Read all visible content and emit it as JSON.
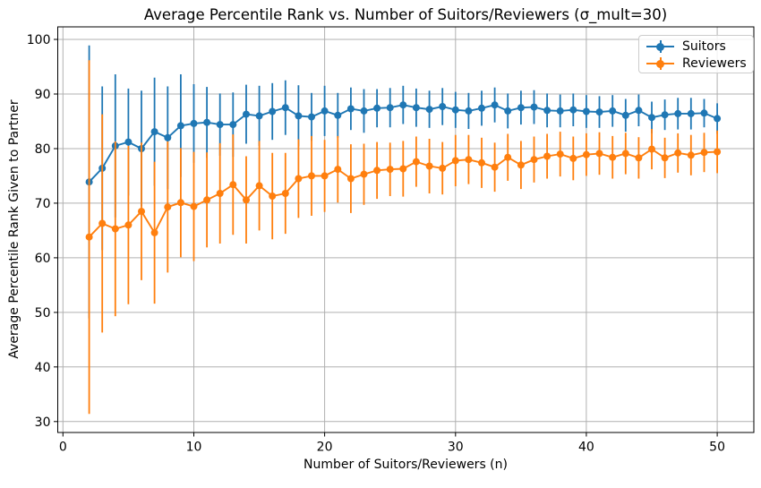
{
  "chart_data": {
    "type": "line",
    "title": "Average Percentile Rank vs. Number of Suitors/Reviewers (σ_mult=30)",
    "xlabel": "Number of Suitors/Reviewers (n)",
    "ylabel": "Average Percentile Rank Given to Partner",
    "grid": true,
    "error_bars": true,
    "marker": "circle",
    "legend_position": "upper right",
    "xlim": [
      -0.4,
      52.8
    ],
    "ylim": [
      28.0,
      102.3
    ],
    "xticks": [
      0,
      10,
      20,
      30,
      40,
      50
    ],
    "yticks": [
      30,
      40,
      50,
      60,
      70,
      80,
      90,
      100
    ],
    "x": [
      2,
      3,
      4,
      5,
      6,
      7,
      8,
      9,
      10,
      11,
      12,
      13,
      14,
      15,
      16,
      17,
      18,
      19,
      20,
      21,
      22,
      23,
      24,
      25,
      26,
      27,
      28,
      29,
      30,
      31,
      32,
      33,
      34,
      35,
      36,
      37,
      38,
      39,
      40,
      41,
      42,
      43,
      44,
      45,
      46,
      47,
      48,
      49,
      50
    ],
    "series": [
      {
        "name": "Suitors",
        "color": "#1f77b4",
        "values": [
          73.9,
          76.4,
          80.5,
          81.2,
          80.0,
          83.1,
          82.0,
          84.2,
          84.6,
          84.8,
          84.4,
          84.4,
          86.3,
          86.0,
          86.8,
          87.5,
          86.0,
          85.8,
          86.9,
          86.1,
          87.3,
          86.9,
          87.4,
          87.5,
          88.0,
          87.5,
          87.2,
          87.7,
          87.1,
          86.9,
          87.4,
          88.0,
          86.9,
          87.5,
          87.6,
          87.0,
          86.9,
          87.1,
          86.8,
          86.7,
          86.9,
          86.1,
          87.0,
          85.7,
          86.2,
          86.4,
          86.4,
          86.5,
          85.5
        ],
        "errors": [
          25.0,
          15.0,
          13.1,
          9.8,
          10.6,
          9.9,
          9.4,
          9.4,
          7.2,
          6.5,
          5.7,
          5.9,
          5.4,
          5.5,
          5.2,
          5.0,
          5.6,
          4.4,
          4.6,
          4.1,
          3.9,
          4.0,
          3.5,
          3.6,
          3.5,
          3.5,
          3.4,
          3.4,
          3.3,
          3.3,
          3.2,
          3.2,
          3.2,
          3.1,
          3.1,
          3.1,
          3.0,
          3.0,
          3.0,
          2.9,
          2.9,
          3.0,
          2.9,
          2.9,
          2.8,
          2.9,
          2.9,
          2.6,
          2.8
        ]
      },
      {
        "name": "Reviewers",
        "color": "#ff7f0e",
        "values": [
          63.8,
          66.3,
          65.3,
          66.0,
          68.5,
          64.6,
          69.3,
          70.1,
          69.4,
          70.6,
          71.8,
          73.4,
          70.6,
          73.2,
          71.3,
          71.8,
          74.5,
          75.0,
          75.0,
          76.2,
          74.5,
          75.3,
          76.0,
          76.2,
          76.3,
          77.6,
          76.8,
          76.4,
          77.8,
          78.0,
          77.4,
          76.6,
          78.4,
          77.0,
          78.0,
          78.6,
          79.0,
          78.2,
          78.9,
          79.1,
          78.4,
          79.1,
          78.3,
          79.9,
          78.3,
          79.2,
          78.8,
          79.3,
          79.4
        ],
        "errors": [
          32.4,
          20.0,
          16.0,
          14.5,
          12.6,
          13.0,
          12.0,
          10.0,
          10.0,
          8.7,
          9.2,
          9.2,
          8.0,
          8.2,
          7.9,
          7.4,
          7.2,
          7.3,
          6.6,
          6.1,
          6.3,
          5.6,
          5.2,
          4.9,
          5.1,
          4.6,
          5.0,
          4.8,
          4.7,
          4.5,
          4.6,
          4.5,
          4.3,
          4.4,
          4.2,
          4.1,
          4.1,
          4.0,
          3.9,
          3.9,
          3.9,
          3.8,
          3.8,
          3.7,
          3.7,
          3.6,
          3.7,
          3.6,
          3.9
        ]
      }
    ],
    "style": {
      "grid_color": "#b0b0b0",
      "spine_color": "#000000",
      "background": "#ffffff"
    }
  }
}
